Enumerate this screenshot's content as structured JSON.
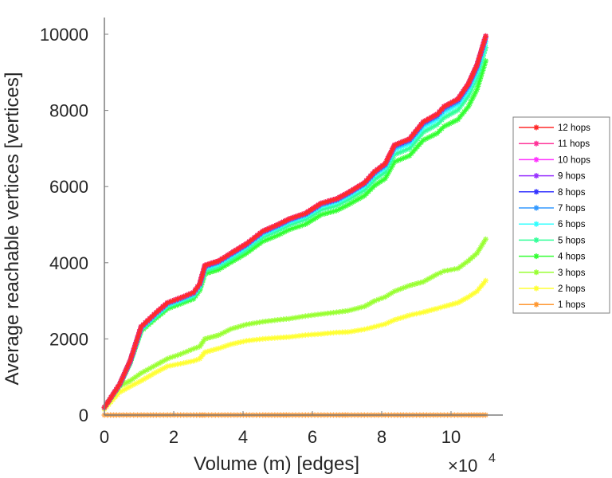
{
  "chart_data": {
    "type": "line",
    "title": "",
    "xlabel": "Volume (m) [edges]",
    "ylabel": "Average reachable vertices [vertices]",
    "x_multiplier_label": "×10",
    "x_multiplier_exponent": "4",
    "xlim": [
      0,
      11.5
    ],
    "ylim": [
      0,
      10400
    ],
    "xticks": [
      0,
      2,
      4,
      6,
      8,
      10
    ],
    "xtick_labels": [
      "0",
      "2",
      "4",
      "6",
      "8",
      "10"
    ],
    "yticks": [
      0,
      2000,
      4000,
      6000,
      8000,
      10000
    ],
    "ytick_labels": [
      "0",
      "2000",
      "4000",
      "6000",
      "8000",
      "10000"
    ],
    "grid": false,
    "legend_position": "right",
    "x": [
      0,
      0.44,
      0.74,
      1.06,
      1.5,
      1.82,
      2.2,
      2.57,
      2.75,
      2.9,
      3.3,
      3.65,
      4.1,
      4.57,
      5.0,
      5.33,
      5.8,
      6.25,
      6.7,
      7.03,
      7.5,
      7.8,
      8.1,
      8.37,
      8.8,
      9.2,
      9.6,
      9.8,
      10.2,
      10.5,
      10.75,
      11.0
    ],
    "series": [
      {
        "name": "12 hops",
        "color": "#ff2a2a",
        "values": [
          200,
          810,
          1420,
          2320,
          2700,
          2950,
          3080,
          3220,
          3450,
          3930,
          4050,
          4250,
          4500,
          4830,
          5000,
          5150,
          5300,
          5560,
          5680,
          5840,
          6100,
          6400,
          6600,
          7090,
          7250,
          7700,
          7900,
          8100,
          8300,
          8700,
          9200,
          9950
        ]
      },
      {
        "name": "11 hops",
        "color": "#ff3399",
        "values": [
          200,
          810,
          1420,
          2320,
          2700,
          2950,
          3080,
          3220,
          3450,
          3930,
          4050,
          4250,
          4500,
          4830,
          5000,
          5150,
          5300,
          5560,
          5680,
          5840,
          6100,
          6400,
          6600,
          7090,
          7250,
          7700,
          7900,
          8100,
          8300,
          8700,
          9200,
          9950
        ]
      },
      {
        "name": "10 hops",
        "color": "#ff33ff",
        "values": [
          200,
          810,
          1420,
          2320,
          2700,
          2950,
          3080,
          3220,
          3450,
          3930,
          4050,
          4250,
          4500,
          4830,
          5000,
          5150,
          5300,
          5560,
          5680,
          5840,
          6100,
          6400,
          6600,
          7090,
          7250,
          7700,
          7900,
          8100,
          8300,
          8700,
          9200,
          9950
        ]
      },
      {
        "name": "9 hops",
        "color": "#9933ff",
        "values": [
          200,
          810,
          1420,
          2320,
          2700,
          2950,
          3080,
          3220,
          3450,
          3930,
          4050,
          4250,
          4500,
          4830,
          5000,
          5150,
          5300,
          5560,
          5680,
          5840,
          6100,
          6400,
          6600,
          7090,
          7250,
          7700,
          7900,
          8100,
          8300,
          8700,
          9200,
          9950
        ]
      },
      {
        "name": "8 hops",
        "color": "#3333ff",
        "values": [
          200,
          805,
          1410,
          2310,
          2690,
          2940,
          3070,
          3210,
          3440,
          3915,
          4035,
          4235,
          4485,
          4815,
          4985,
          5135,
          5285,
          5545,
          5665,
          5825,
          6085,
          6385,
          6585,
          7070,
          7230,
          7680,
          7880,
          8080,
          8280,
          8680,
          9180,
          9940
        ]
      },
      {
        "name": "7 hops",
        "color": "#3399ff",
        "values": [
          200,
          800,
          1400,
          2290,
          2670,
          2920,
          3050,
          3190,
          3420,
          3890,
          4010,
          4210,
          4460,
          4790,
          4960,
          5110,
          5260,
          5520,
          5640,
          5800,
          6060,
          6350,
          6550,
          7030,
          7190,
          7640,
          7840,
          8030,
          8230,
          8620,
          9120,
          9900
        ]
      },
      {
        "name": "6 hops",
        "color": "#33ffff",
        "values": [
          200,
          795,
          1390,
          2270,
          2640,
          2890,
          3020,
          3160,
          3390,
          3850,
          3970,
          4170,
          4420,
          4750,
          4920,
          5070,
          5220,
          5480,
          5590,
          5750,
          6010,
          6300,
          6490,
          6960,
          7120,
          7560,
          7760,
          7950,
          8150,
          8530,
          9020,
          9800
        ]
      },
      {
        "name": "5 hops",
        "color": "#33ff99",
        "values": [
          200,
          790,
          1380,
          2240,
          2600,
          2850,
          2980,
          3110,
          3340,
          3790,
          3910,
          4100,
          4350,
          4670,
          4840,
          4990,
          5140,
          5390,
          5500,
          5660,
          5910,
          6190,
          6380,
          6840,
          7000,
          7430,
          7630,
          7810,
          8010,
          8380,
          8860,
          9650
        ]
      },
      {
        "name": "4 hops",
        "color": "#33ff33",
        "values": [
          200,
          780,
          1360,
          2200,
          2550,
          2790,
          2920,
          3050,
          3270,
          3710,
          3820,
          4010,
          4250,
          4560,
          4720,
          4870,
          5010,
          5260,
          5370,
          5520,
          5760,
          6030,
          6210,
          6650,
          6810,
          7220,
          7400,
          7580,
          7760,
          8100,
          8550,
          9300
        ]
      },
      {
        "name": "3 hops",
        "color": "#99ff33",
        "values": [
          200,
          760,
          900,
          1100,
          1320,
          1480,
          1600,
          1740,
          1800,
          2000,
          2100,
          2260,
          2380,
          2450,
          2500,
          2530,
          2600,
          2650,
          2700,
          2740,
          2850,
          3000,
          3100,
          3250,
          3400,
          3500,
          3700,
          3780,
          3850,
          4050,
          4250,
          4620
        ]
      },
      {
        "name": "2 hops",
        "color": "#ffff33",
        "values": [
          150,
          600,
          750,
          900,
          1130,
          1280,
          1350,
          1420,
          1480,
          1650,
          1750,
          1860,
          1950,
          2000,
          2030,
          2050,
          2100,
          2130,
          2170,
          2180,
          2250,
          2320,
          2390,
          2500,
          2620,
          2700,
          2800,
          2850,
          2950,
          3100,
          3250,
          3530
        ]
      },
      {
        "name": "1 hops",
        "color": "#ff9933",
        "values": [
          1,
          1,
          1,
          1,
          1,
          1,
          1,
          1,
          1,
          1,
          1,
          1,
          1,
          1,
          1,
          1,
          1,
          1,
          1,
          1,
          1,
          1,
          1,
          1,
          1,
          1,
          1,
          1,
          1,
          1,
          1,
          1
        ]
      }
    ]
  }
}
